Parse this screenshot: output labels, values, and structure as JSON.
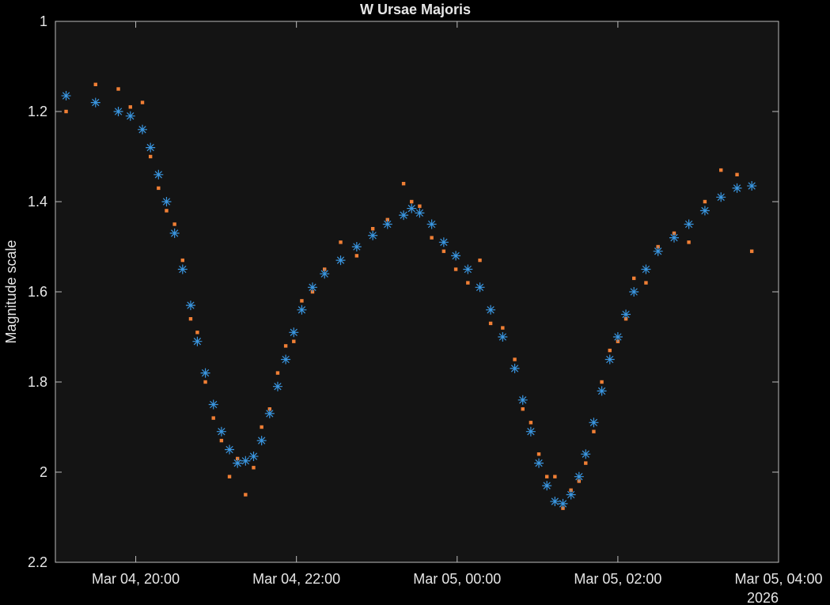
{
  "chart_data": {
    "type": "scatter",
    "title": "W Ursae Majoris",
    "y_label": "Magnitude scale",
    "x_year_label": "2026",
    "y_reverse": true,
    "grid": false,
    "x": [
      "2026-03-04T19:08",
      "2026-03-04T19:30",
      "2026-03-04T19:47",
      "2026-03-04T19:56",
      "2026-03-04T20:05",
      "2026-03-04T20:11",
      "2026-03-04T20:17",
      "2026-03-04T20:23",
      "2026-03-04T20:29",
      "2026-03-04T20:35",
      "2026-03-04T20:41",
      "2026-03-04T20:46",
      "2026-03-04T20:52",
      "2026-03-04T20:58",
      "2026-03-04T21:04",
      "2026-03-04T21:10",
      "2026-03-04T21:16",
      "2026-03-04T21:22",
      "2026-03-04T21:28",
      "2026-03-04T21:34",
      "2026-03-04T21:40",
      "2026-03-04T21:46",
      "2026-03-04T21:52",
      "2026-03-04T21:58",
      "2026-03-04T22:04",
      "2026-03-04T22:12",
      "2026-03-04T22:21",
      "2026-03-04T22:33",
      "2026-03-04T22:45",
      "2026-03-04T22:57",
      "2026-03-04T23:08",
      "2026-03-04T23:20",
      "2026-03-04T23:26",
      "2026-03-04T23:32",
      "2026-03-04T23:41",
      "2026-03-04T23:50",
      "2026-03-04T23:59",
      "2026-03-05T00:08",
      "2026-03-05T00:17",
      "2026-03-05T00:25",
      "2026-03-05T00:34",
      "2026-03-05T00:43",
      "2026-03-05T00:49",
      "2026-03-05T00:55",
      "2026-03-05T01:01",
      "2026-03-05T01:07",
      "2026-03-05T01:13",
      "2026-03-05T01:19",
      "2026-03-05T01:25",
      "2026-03-05T01:31",
      "2026-03-05T01:36",
      "2026-03-05T01:42",
      "2026-03-05T01:48",
      "2026-03-05T01:54",
      "2026-03-05T02:00",
      "2026-03-05T02:06",
      "2026-03-05T02:12",
      "2026-03-05T02:21",
      "2026-03-05T02:30",
      "2026-03-05T02:42",
      "2026-03-05T02:53",
      "2026-03-05T03:05",
      "2026-03-05T03:17",
      "2026-03-05T03:29",
      "2026-03-05T03:40"
    ],
    "series": [
      {
        "color": "#f07f35",
        "marker": "square",
        "values": [
          1.2,
          1.14,
          1.15,
          1.19,
          1.18,
          1.3,
          1.37,
          1.42,
          1.45,
          1.53,
          1.66,
          1.69,
          1.8,
          1.88,
          1.93,
          2.01,
          1.97,
          2.05,
          1.99,
          1.9,
          1.86,
          1.78,
          1.72,
          1.71,
          1.62,
          1.6,
          1.55,
          1.49,
          1.52,
          1.46,
          1.44,
          1.36,
          1.4,
          1.41,
          1.48,
          1.51,
          1.55,
          1.58,
          1.53,
          1.67,
          1.68,
          1.75,
          1.86,
          1.89,
          1.96,
          2.01,
          2.01,
          2.08,
          2.04,
          2.02,
          1.98,
          1.91,
          1.8,
          1.73,
          1.71,
          1.66,
          1.57,
          1.58,
          1.5,
          1.47,
          1.49,
          1.4,
          1.33,
          1.34,
          1.51
        ]
      },
      {
        "color": "#3a96e0",
        "marker": "asterisk",
        "values": [
          1.165,
          1.18,
          1.2,
          1.21,
          1.24,
          1.28,
          1.34,
          1.4,
          1.47,
          1.55,
          1.63,
          1.71,
          1.78,
          1.85,
          1.91,
          1.95,
          1.98,
          1.975,
          1.965,
          1.93,
          1.87,
          1.81,
          1.75,
          1.69,
          1.64,
          1.59,
          1.56,
          1.53,
          1.5,
          1.475,
          1.45,
          1.43,
          1.415,
          1.425,
          1.45,
          1.49,
          1.52,
          1.55,
          1.59,
          1.64,
          1.7,
          1.77,
          1.84,
          1.91,
          1.98,
          2.03,
          2.065,
          2.07,
          2.05,
          2.01,
          1.96,
          1.89,
          1.82,
          1.75,
          1.7,
          1.65,
          1.6,
          1.55,
          1.51,
          1.48,
          1.45,
          1.42,
          1.39,
          1.37,
          1.365
        ]
      }
    ],
    "xlim": [
      "2026-03-04T19:00",
      "2026-03-05T04:00"
    ],
    "xticks": [
      {
        "value": "2026-03-04T20:00",
        "label": "Mar 04, 20:00"
      },
      {
        "value": "2026-03-04T22:00",
        "label": "Mar 04, 22:00"
      },
      {
        "value": "2026-03-05T00:00",
        "label": "Mar 05, 00:00"
      },
      {
        "value": "2026-03-05T02:00",
        "label": "Mar 05, 02:00"
      },
      {
        "value": "2026-03-05T04:00",
        "label": "Mar 05, 04:00"
      }
    ],
    "ylim": [
      1,
      2.2
    ],
    "yticks": [
      1,
      1.2,
      1.4,
      1.6,
      1.8,
      2,
      2.2
    ]
  }
}
